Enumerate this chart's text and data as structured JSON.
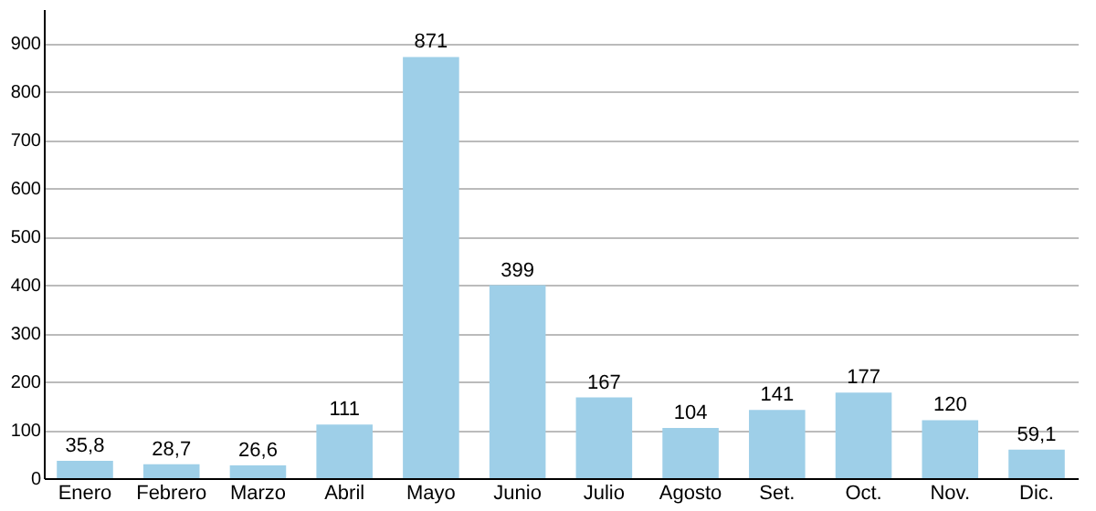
{
  "chart_data": {
    "type": "bar",
    "categories": [
      "Enero",
      "Febrero",
      "Marzo",
      "Abril",
      "Mayo",
      "Junio",
      "Julio",
      "Agosto",
      "Set.",
      "Oct.",
      "Nov.",
      "Dic."
    ],
    "values": [
      35.8,
      28.7,
      26.6,
      111,
      871,
      399,
      167,
      104,
      141,
      177,
      120,
      59.1
    ],
    "value_labels": [
      "35,8",
      "28,7",
      "26,6",
      "111",
      "871",
      "399",
      "167",
      "104",
      "141",
      "177",
      "120",
      "59,1"
    ],
    "color": "#9ecfe8",
    "ylim": [
      0,
      970
    ],
    "yticks": [
      0,
      100,
      200,
      300,
      400,
      500,
      600,
      700,
      800,
      900
    ],
    "grid": "y"
  }
}
